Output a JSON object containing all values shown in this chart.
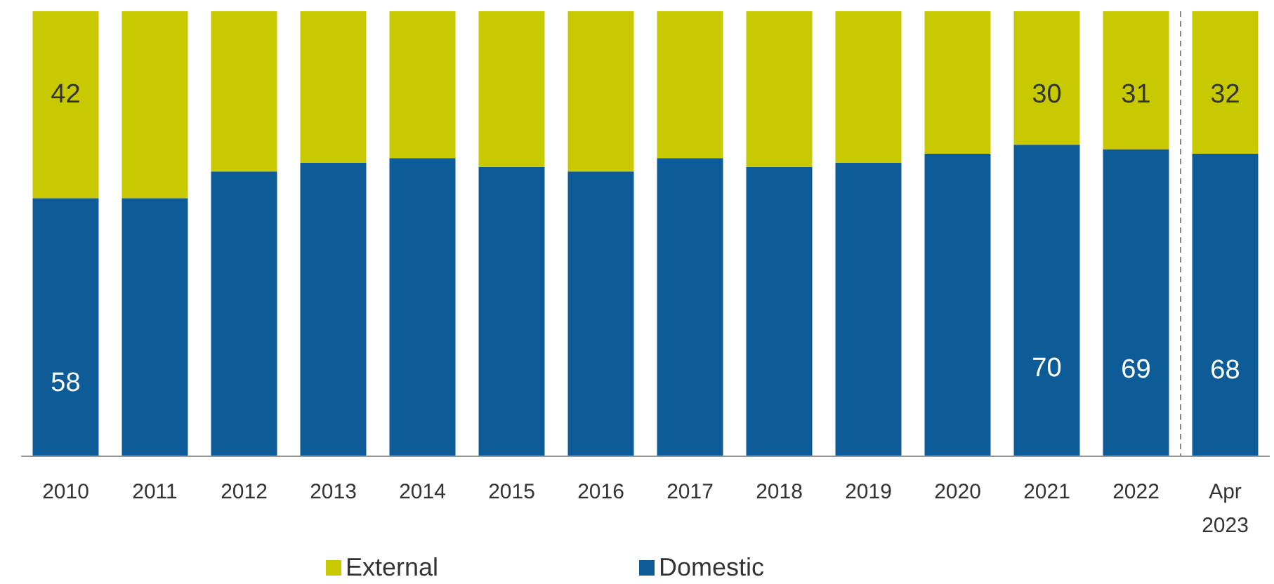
{
  "chart_data": {
    "type": "bar",
    "stacked": true,
    "categories": [
      "2010",
      "2011",
      "2012",
      "2013",
      "2014",
      "2015",
      "2016",
      "2017",
      "2018",
      "2019",
      "2020",
      "2021",
      "2022",
      "Apr 2023"
    ],
    "ylim": [
      0,
      100
    ],
    "tick_labels": "x",
    "legend": "bottom",
    "series": [
      {
        "name": "Domestic",
        "color": "#0e5c97",
        "values": [
          58,
          58,
          64,
          66,
          67,
          65,
          64,
          67,
          65,
          66,
          68,
          70,
          69,
          68
        ],
        "value_labels": [
          "58",
          null,
          null,
          null,
          null,
          null,
          null,
          null,
          null,
          null,
          null,
          "70",
          "69",
          "68"
        ]
      },
      {
        "name": "External",
        "color": "#c9c900",
        "values": [
          42,
          42,
          36,
          34,
          33,
          35,
          36,
          33,
          35,
          34,
          32,
          30,
          31,
          32
        ],
        "value_labels": [
          "42",
          null,
          null,
          null,
          null,
          null,
          null,
          null,
          null,
          null,
          null,
          "30",
          "31",
          "32"
        ]
      }
    ]
  }
}
